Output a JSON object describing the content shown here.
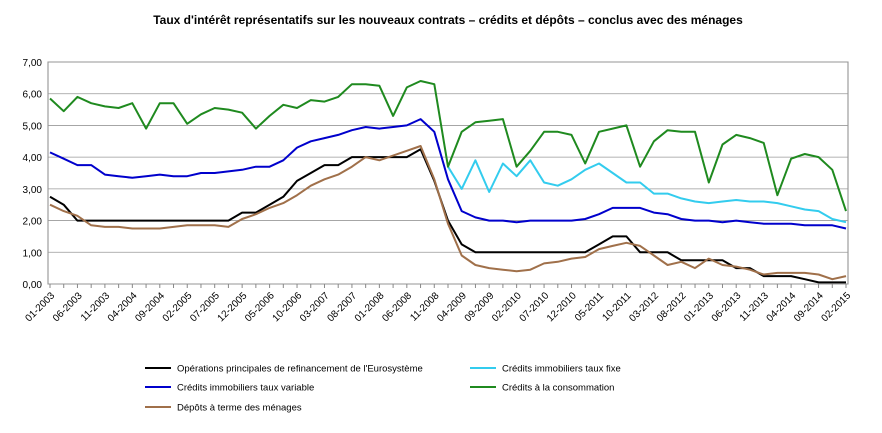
{
  "chart_data": {
    "type": "line",
    "title": "Taux d'intérêt représentatifs sur les nouveaux contrats – crédits et dépôts – conclus avec des ménages",
    "categories": [
      "01-2003",
      null,
      "06-2003",
      null,
      "11-2003",
      null,
      "04-2004",
      null,
      "09-2004",
      null,
      "02-2005",
      null,
      "07-2005",
      null,
      "12-2005",
      null,
      "05-2006",
      null,
      "10-2006",
      null,
      "03-2007",
      null,
      "08-2007",
      null,
      "01-2008",
      null,
      "06-2008",
      null,
      "11-2008",
      null,
      "04-2009",
      null,
      "09-2009",
      null,
      "02-2010",
      null,
      "07-2010",
      null,
      "12-2010",
      null,
      "05-2011",
      null,
      "10-2011",
      null,
      "03-2012",
      null,
      "08-2012",
      null,
      "01-2013",
      null,
      "06-2013",
      null,
      "11-2013",
      null,
      "04-2014",
      null,
      "09-2014",
      null,
      "02-2015"
    ],
    "series": [
      {
        "name": "Opérations principales de refinancement de l'Eurosystème",
        "color": "#000000",
        "values": [
          2.75,
          2.5,
          2.0,
          2.0,
          2.0,
          2.0,
          2.0,
          2.0,
          2.0,
          2.0,
          2.0,
          2.0,
          2.0,
          2.0,
          2.25,
          2.25,
          2.5,
          2.75,
          3.25,
          3.5,
          3.75,
          3.75,
          4.0,
          4.0,
          4.0,
          4.0,
          4.0,
          4.25,
          3.25,
          2.0,
          1.25,
          1.0,
          1.0,
          1.0,
          1.0,
          1.0,
          1.0,
          1.0,
          1.0,
          1.0,
          1.25,
          1.5,
          1.5,
          1.0,
          1.0,
          1.0,
          0.75,
          0.75,
          0.75,
          0.75,
          0.5,
          0.5,
          0.25,
          0.25,
          0.25,
          0.15,
          0.05,
          0.05,
          0.05
        ]
      },
      {
        "name": "Crédits immobiliers taux fixe",
        "color": "#33ccee",
        "values": [
          null,
          null,
          null,
          null,
          null,
          null,
          null,
          null,
          null,
          null,
          null,
          null,
          null,
          null,
          null,
          null,
          null,
          null,
          null,
          null,
          null,
          null,
          null,
          null,
          null,
          null,
          null,
          null,
          null,
          3.7,
          3.0,
          3.9,
          2.9,
          3.8,
          3.4,
          3.9,
          3.2,
          3.1,
          3.3,
          3.6,
          3.8,
          3.5,
          3.2,
          3.2,
          2.85,
          2.85,
          2.7,
          2.6,
          2.55,
          2.6,
          2.65,
          2.6,
          2.6,
          2.55,
          2.45,
          2.35,
          2.3,
          2.05,
          1.95
        ]
      },
      {
        "name": "Crédits immobiliers taux variable",
        "color": "#0000cc",
        "values": [
          4.15,
          3.95,
          3.75,
          3.75,
          3.45,
          3.4,
          3.35,
          3.4,
          3.45,
          3.4,
          3.4,
          3.5,
          3.5,
          3.55,
          3.6,
          3.7,
          3.7,
          3.9,
          4.3,
          4.5,
          4.6,
          4.7,
          4.85,
          4.95,
          4.9,
          4.95,
          5.0,
          5.2,
          4.8,
          3.3,
          2.3,
          2.1,
          2.0,
          2.0,
          1.95,
          2.0,
          2.0,
          2.0,
          2.0,
          2.05,
          2.2,
          2.4,
          2.4,
          2.4,
          2.25,
          2.2,
          2.05,
          2.0,
          2.0,
          1.95,
          2.0,
          1.95,
          1.9,
          1.9,
          1.9,
          1.85,
          1.85,
          1.85,
          1.75
        ]
      },
      {
        "name": "Crédits à la consommation",
        "color": "#1f8a1f",
        "values": [
          5.85,
          5.45,
          5.9,
          5.7,
          5.6,
          5.55,
          5.7,
          4.9,
          5.7,
          5.7,
          5.05,
          5.35,
          5.55,
          5.5,
          5.4,
          4.9,
          5.3,
          5.65,
          5.55,
          5.8,
          5.75,
          5.9,
          6.3,
          6.3,
          6.25,
          5.3,
          6.2,
          6.4,
          6.3,
          3.7,
          4.8,
          5.1,
          5.15,
          5.2,
          3.7,
          4.2,
          4.8,
          4.8,
          4.7,
          3.8,
          4.8,
          4.9,
          5.0,
          3.7,
          4.5,
          4.85,
          4.8,
          4.8,
          3.2,
          4.4,
          4.7,
          4.6,
          4.45,
          2.8,
          3.95,
          4.1,
          4.0,
          3.6,
          2.3
        ]
      },
      {
        "name": "Dépôts à terme des ménages",
        "color": "#a0704a",
        "values": [
          2.5,
          2.3,
          2.15,
          1.85,
          1.8,
          1.8,
          1.75,
          1.75,
          1.75,
          1.8,
          1.85,
          1.85,
          1.85,
          1.8,
          2.05,
          2.2,
          2.4,
          2.55,
          2.8,
          3.1,
          3.3,
          3.45,
          3.7,
          4.0,
          3.9,
          4.05,
          4.2,
          4.35,
          3.3,
          1.9,
          0.9,
          0.6,
          0.5,
          0.45,
          0.4,
          0.45,
          0.65,
          0.7,
          0.8,
          0.85,
          1.1,
          1.2,
          1.3,
          1.2,
          0.9,
          0.6,
          0.7,
          0.5,
          0.8,
          0.6,
          0.55,
          0.45,
          0.3,
          0.35,
          0.35,
          0.35,
          0.3,
          0.15,
          0.25
        ]
      }
    ],
    "ylim": [
      0,
      7
    ],
    "yticks": [
      {
        "value": 0,
        "label": "0,00"
      },
      {
        "value": 1,
        "label": "1,00"
      },
      {
        "value": 2,
        "label": "2,00"
      },
      {
        "value": 3,
        "label": "3,00"
      },
      {
        "value": 4,
        "label": "4,00"
      },
      {
        "value": 5,
        "label": "5,00"
      },
      {
        "value": 6,
        "label": "6,00"
      },
      {
        "value": 7,
        "label": "7,00"
      }
    ],
    "grid": true
  }
}
